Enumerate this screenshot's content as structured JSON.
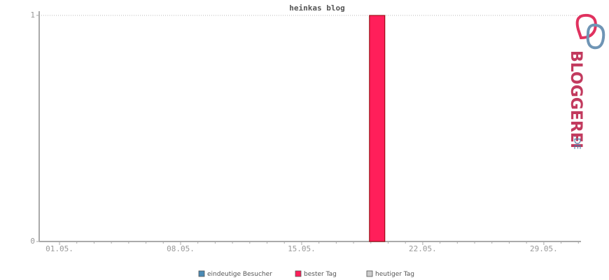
{
  "chart_data": {
    "type": "bar",
    "title": "heinkas blog",
    "categories": [
      "01.05.",
      null,
      null,
      null,
      null,
      null,
      null,
      "08.05.",
      null,
      null,
      null,
      null,
      null,
      null,
      "15.05.",
      null,
      null,
      null,
      null,
      null,
      null,
      "22.05.",
      null,
      null,
      null,
      null,
      null,
      null,
      "29.05.",
      null,
      null
    ],
    "series": [
      {
        "name": "eindeutige Besucher",
        "color": "#4a8ab5",
        "values": [
          0,
          0,
          0,
          0,
          0,
          0,
          0,
          0,
          0,
          0,
          0,
          0,
          0,
          0,
          0,
          0,
          0,
          0,
          null,
          0,
          0,
          0,
          0,
          0,
          0,
          0,
          0,
          0,
          0,
          0,
          0
        ]
      },
      {
        "name": "bester Tag",
        "color": "#ff1f5a",
        "values": [
          null,
          null,
          null,
          null,
          null,
          null,
          null,
          null,
          null,
          null,
          null,
          null,
          null,
          null,
          null,
          null,
          null,
          null,
          1,
          null,
          null,
          null,
          null,
          null,
          null,
          null,
          null,
          null,
          null,
          null,
          null
        ]
      },
      {
        "name": "heutiger Tag",
        "color": "#cccccc",
        "values": [
          null,
          null,
          null,
          null,
          null,
          null,
          null,
          null,
          null,
          null,
          null,
          null,
          null,
          null,
          null,
          null,
          null,
          null,
          null,
          null,
          null,
          null,
          null,
          null,
          null,
          null,
          null,
          null,
          null,
          null,
          null
        ]
      }
    ],
    "ylim": [
      0,
      1
    ],
    "yticks": [
      0,
      1
    ],
    "grid": true
  },
  "logo": {
    "name": "BLOGGEREI",
    "suffix": ".DE"
  }
}
